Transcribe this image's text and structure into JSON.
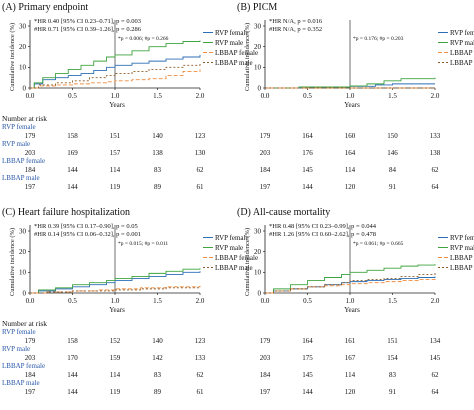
{
  "colors": {
    "rvp_female": "#2c6fb5",
    "rvp_male": "#3fa33f",
    "lbbap_female": "#ef8c3e",
    "lbbap_male": "#8f5a26",
    "risk_label": "#2858a8",
    "axis": "#222222"
  },
  "chart_data": [
    {
      "panel": "(A) Primary endpoint",
      "type": "line",
      "title": "(A) Primary endpoint",
      "xlabel": "Years",
      "ylabel": "Cumulative incidence (%)",
      "xlim": [
        0,
        2.0
      ],
      "ylim": [
        0,
        30
      ],
      "xticks": [
        "0.0",
        "0.5",
        "1.0",
        "1.5",
        "2.0"
      ],
      "yticks": [
        "0",
        "10",
        "20",
        "30"
      ],
      "vline_x": 1.0,
      "annotations": [
        "*HR 0.40 [95% CI 0.23–0.71], p = 0.003",
        "#HR 0.71 [95% CI 0.39–1.26], p = 0.286",
        "*p = 0.006; #p = 0.266"
      ],
      "legend": [
        "RVP female",
        "RVP male",
        "LBBAP female",
        "LBBAP male"
      ],
      "series": [
        {
          "name": "RVP female",
          "x": [
            0,
            0.05,
            0.15,
            0.3,
            0.45,
            0.6,
            0.75,
            0.9,
            1.0,
            1.2,
            1.4,
            1.6,
            1.8,
            2.0
          ],
          "y": [
            0,
            2,
            4,
            5,
            6,
            7,
            8.5,
            10,
            11,
            12,
            13,
            14,
            15,
            16
          ]
        },
        {
          "name": "RVP male",
          "x": [
            0,
            0.05,
            0.15,
            0.3,
            0.45,
            0.6,
            0.75,
            0.9,
            1.0,
            1.2,
            1.4,
            1.6,
            1.8,
            2.0
          ],
          "y": [
            0,
            2.5,
            5,
            7,
            9,
            11,
            13,
            15,
            16,
            18,
            20,
            21.5,
            22.5,
            23
          ]
        },
        {
          "name": "LBBAP female",
          "x": [
            0,
            0.1,
            0.3,
            0.5,
            0.7,
            0.9,
            1.0,
            1.2,
            1.4,
            1.6,
            1.8,
            2.0
          ],
          "y": [
            0,
            1,
            1.5,
            2,
            2.5,
            3,
            3.5,
            4,
            4.5,
            6,
            8,
            9
          ]
        },
        {
          "name": "LBBAP male",
          "x": [
            0,
            0.1,
            0.3,
            0.5,
            0.7,
            0.9,
            1.0,
            1.2,
            1.4,
            1.6,
            1.8,
            2.0
          ],
          "y": [
            0,
            1.5,
            2.5,
            3.5,
            5,
            6,
            7,
            8,
            9,
            10,
            11,
            12
          ]
        }
      ],
      "risk_table": {
        "header": "Number at risk",
        "years": [
          0,
          0.5,
          1.0,
          1.5,
          2.0
        ],
        "rows": [
          {
            "label": "RVP female",
            "values": [
              "179",
              "158",
              "151",
              "140",
              "123"
            ]
          },
          {
            "label": "RVP male",
            "values": [
              "203",
              "169",
              "157",
              "138",
              "130"
            ]
          },
          {
            "label": "LBBAP female",
            "values": [
              "184",
              "144",
              "114",
              "83",
              "62"
            ]
          },
          {
            "label": "LBBAP male",
            "values": [
              "197",
              "144",
              "119",
              "89",
              "61"
            ]
          }
        ]
      }
    },
    {
      "panel": "(B) PICM",
      "type": "line",
      "title": "(B) PICM",
      "xlabel": "Years",
      "ylabel": "Cumulative incidence (%)",
      "xlim": [
        0,
        2.0
      ],
      "ylim": [
        0,
        30
      ],
      "xticks": [
        "0.0",
        "0.5",
        "1.0",
        "1.5",
        "2.0"
      ],
      "yticks": [
        "0",
        "10",
        "20",
        "30"
      ],
      "vline_x": 1.0,
      "annotations": [
        "*HR N/A, p = 0.016",
        "#HR N/A, p = 0.352",
        "*p = 0.176; #p = 0.203"
      ],
      "legend": [
        "RVP female",
        "RVP male",
        "LBBAP female",
        "LBBAP male"
      ],
      "series": [
        {
          "name": "RVP female",
          "x": [
            0,
            0.5,
            1.0,
            1.3,
            1.5,
            2.0
          ],
          "y": [
            0,
            0.5,
            0.8,
            1.5,
            2,
            2
          ]
        },
        {
          "name": "RVP male",
          "x": [
            0,
            0.4,
            1.0,
            1.2,
            1.4,
            1.6,
            2.0
          ],
          "y": [
            0,
            0.5,
            1,
            2,
            3.5,
            4.5,
            5
          ]
        },
        {
          "name": "LBBAP female",
          "x": [
            0,
            2.0
          ],
          "y": [
            0,
            0
          ]
        },
        {
          "name": "LBBAP male",
          "x": [
            0,
            2.0
          ],
          "y": [
            0,
            0
          ]
        }
      ],
      "risk_table": {
        "header": "",
        "years": [
          0,
          0.5,
          1.0,
          1.5,
          2.0
        ],
        "rows": [
          {
            "label": "",
            "values": [
              "179",
              "164",
              "160",
              "150",
              "133"
            ]
          },
          {
            "label": "",
            "values": [
              "203",
              "176",
              "164",
              "146",
              "138"
            ]
          },
          {
            "label": "",
            "values": [
              "184",
              "145",
              "114",
              "84",
              "62"
            ]
          },
          {
            "label": "",
            "values": [
              "197",
              "144",
              "120",
              "91",
              "64"
            ]
          }
        ]
      }
    },
    {
      "panel": "(C) Heart failure hospitalization",
      "type": "line",
      "title": "(C) Heart failure hospitalization",
      "xlabel": "Years",
      "ylabel": "Cumulative incidence (%)",
      "xlim": [
        0,
        2.0
      ],
      "ylim": [
        0,
        30
      ],
      "xticks": [
        "0.0",
        "0.5",
        "1.0",
        "1.5",
        "2.0"
      ],
      "yticks": [
        "0",
        "10",
        "20",
        "30"
      ],
      "vline_x": 1.0,
      "annotations": [
        "*HR 0.39 [95% CI 0.17–0.90], p = 0.05",
        "#HR 0.14 [95% CI 0.06–0.32], p = 0.001",
        "*p = 0.015; #p = 0.011"
      ],
      "legend": [
        "RVP female",
        "RVP male",
        "LBBAP female",
        "LBBAP male"
      ],
      "series": [
        {
          "name": "RVP female",
          "x": [
            0,
            0.1,
            0.3,
            0.5,
            0.7,
            0.9,
            1.0,
            1.2,
            1.4,
            1.6,
            1.8,
            2.0
          ],
          "y": [
            0,
            1,
            2,
            3,
            4,
            5,
            6,
            7,
            8,
            9,
            10,
            10.5
          ]
        },
        {
          "name": "RVP male",
          "x": [
            0,
            0.1,
            0.3,
            0.5,
            0.7,
            0.9,
            1.0,
            1.2,
            1.4,
            1.6,
            1.8,
            2.0
          ],
          "y": [
            0,
            1.5,
            2.5,
            4,
            5,
            6,
            7,
            8,
            9.5,
            10.5,
            11.5,
            12
          ]
        },
        {
          "name": "LBBAP female",
          "x": [
            0,
            0.2,
            0.5,
            0.8,
            1.0,
            1.3,
            1.6,
            2.0
          ],
          "y": [
            0,
            0.5,
            1,
            1.5,
            2,
            2.5,
            3,
            3.5
          ]
        },
        {
          "name": "LBBAP male",
          "x": [
            0,
            0.2,
            0.5,
            0.8,
            1.0,
            1.3,
            1.6,
            2.0
          ],
          "y": [
            0,
            0.5,
            1,
            1,
            1.5,
            2,
            2.5,
            2.5
          ]
        }
      ],
      "risk_table": {
        "header": "Number at risk",
        "years": [
          0,
          0.5,
          1.0,
          1.5,
          2.0
        ],
        "rows": [
          {
            "label": "RVP female",
            "values": [
              "179",
              "158",
              "152",
              "140",
              "123"
            ]
          },
          {
            "label": "RVP male",
            "values": [
              "203",
              "170",
              "159",
              "142",
              "133"
            ]
          },
          {
            "label": "LBBAP female",
            "values": [
              "184",
              "144",
              "114",
              "83",
              "62"
            ]
          },
          {
            "label": "LBBAP male",
            "values": [
              "197",
              "144",
              "119",
              "89",
              "61"
            ]
          }
        ]
      }
    },
    {
      "panel": "(D) All-cause mortality",
      "type": "line",
      "title": "(D) All-cause mortality",
      "xlabel": "Years",
      "ylabel": "Cumulative incidence (%)",
      "xlim": [
        0,
        2.0
      ],
      "ylim": [
        0,
        30
      ],
      "xticks": [
        "0.0",
        "0.5",
        "1.0",
        "1.5",
        "2.0"
      ],
      "yticks": [
        "0",
        "10",
        "20",
        "30"
      ],
      "vline_x": 1.0,
      "annotations": [
        "*HR 0.48 [95% CI 0.23–0.99], p = 0.044",
        "#HR 1.26 [95% CI 0.60–2.62], p = 0.478",
        "*p = 0.061; #p = 0.665"
      ],
      "legend": [
        "RVP female",
        "RVP male",
        "LBBAP female",
        "LBBAP male"
      ],
      "series": [
        {
          "name": "RVP female",
          "x": [
            0,
            0.1,
            0.3,
            0.5,
            0.7,
            0.9,
            1.0,
            1.2,
            1.4,
            1.6,
            1.8,
            2.0
          ],
          "y": [
            0,
            1,
            2,
            3,
            4,
            5,
            5.5,
            6,
            6.5,
            7,
            7.5,
            8
          ]
        },
        {
          "name": "RVP male",
          "x": [
            0,
            0.1,
            0.3,
            0.5,
            0.7,
            0.9,
            1.0,
            1.2,
            1.4,
            1.6,
            1.8,
            2.0
          ],
          "y": [
            0,
            2,
            4,
            6,
            7.5,
            9,
            10,
            11,
            12,
            13,
            13.5,
            14
          ]
        },
        {
          "name": "LBBAP female",
          "x": [
            0,
            0.1,
            0.3,
            0.5,
            0.7,
            0.9,
            1.0,
            1.2,
            1.4,
            1.6,
            1.8,
            2.0
          ],
          "y": [
            0,
            1,
            2,
            3,
            3.5,
            4,
            4.5,
            5,
            5.5,
            6,
            6.5,
            7
          ]
        },
        {
          "name": "LBBAP male",
          "x": [
            0,
            0.1,
            0.3,
            0.5,
            0.7,
            0.9,
            1.0,
            1.2,
            1.4,
            1.6,
            1.8,
            2.0
          ],
          "y": [
            0,
            1,
            2,
            3,
            4,
            5,
            6,
            6.5,
            7,
            8,
            9,
            10
          ]
        }
      ],
      "risk_table": {
        "header": "",
        "years": [
          0,
          0.5,
          1.0,
          1.5,
          2.0
        ],
        "rows": [
          {
            "label": "",
            "values": [
              "179",
              "164",
              "161",
              "151",
              "134"
            ]
          },
          {
            "label": "",
            "values": [
              "203",
              "175",
              "167",
              "154",
              "145"
            ]
          },
          {
            "label": "",
            "values": [
              "184",
              "145",
              "114",
              "83",
              "62"
            ]
          },
          {
            "label": "",
            "values": [
              "197",
              "144",
              "120",
              "91",
              "64"
            ]
          }
        ]
      }
    }
  ]
}
